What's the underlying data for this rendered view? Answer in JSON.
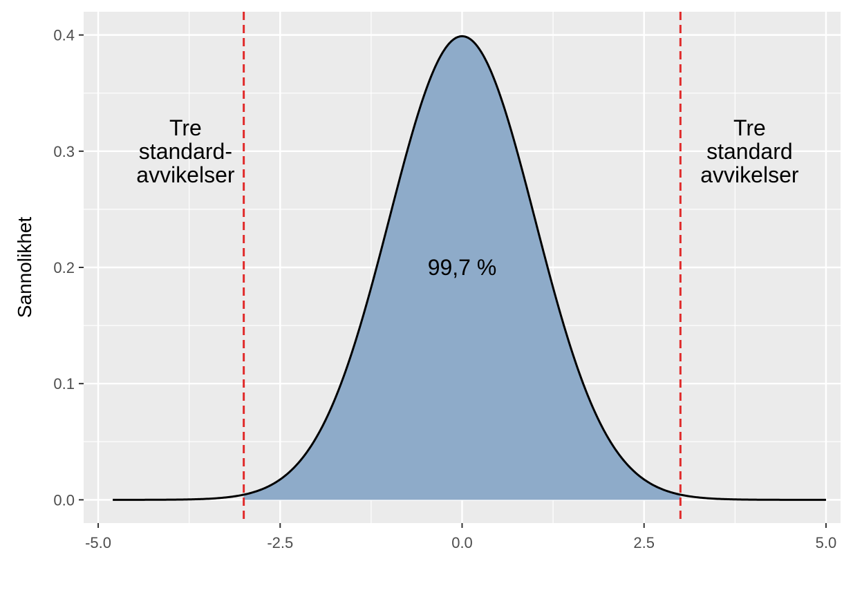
{
  "chart_data": {
    "type": "area",
    "title": "",
    "xlabel": "",
    "ylabel": "Sannolikhet",
    "xlim": [
      -5.2,
      5.2
    ],
    "ylim": [
      -0.02,
      0.42
    ],
    "x_ticks": [
      -5.0,
      -2.5,
      0.0,
      2.5,
      5.0
    ],
    "x_tick_labels": [
      "-5.0",
      "-2.5",
      "0.0",
      "2.5",
      "5.0"
    ],
    "y_ticks": [
      0.0,
      0.1,
      0.2,
      0.3,
      0.4
    ],
    "y_tick_labels": [
      "0.0",
      "0.1",
      "0.2",
      "0.3",
      "0.4"
    ],
    "grid": true,
    "series": [
      {
        "distribution": "standard normal density",
        "mean": 0,
        "sd": 1,
        "x_range": [
          -4.8,
          5.0
        ],
        "shaded_range": [
          -3,
          3
        ],
        "x": [
          -4.8,
          -4,
          -3,
          -2.5,
          -2,
          -1.5,
          -1,
          -0.5,
          0,
          0.5,
          1,
          1.5,
          2,
          2.5,
          3,
          4,
          5
        ],
        "y": [
          0.0,
          0.0001,
          0.0044,
          0.0175,
          0.054,
          0.1295,
          0.242,
          0.3521,
          0.3989,
          0.3521,
          0.242,
          0.1295,
          0.054,
          0.0175,
          0.0044,
          0.0001,
          0.0
        ]
      }
    ],
    "vlines": [
      -3,
      3
    ],
    "annotations": [
      {
        "x": -3.8,
        "y": 0.3,
        "lines": [
          "Tre",
          "standard-",
          "avvikelser"
        ]
      },
      {
        "x": 0.0,
        "y": 0.2,
        "lines": [
          "99,7 %"
        ]
      },
      {
        "x": 3.95,
        "y": 0.3,
        "lines": [
          "Tre",
          "standard",
          "avvikelser"
        ]
      }
    ],
    "colors": {
      "panel": "#ebebeb",
      "grid": "#ffffff",
      "fill": "#8eabc9",
      "curve": "#000000",
      "vline": "#e02b2b",
      "tick_text": "#4d4d4d",
      "tick_mark": "#333333"
    }
  }
}
